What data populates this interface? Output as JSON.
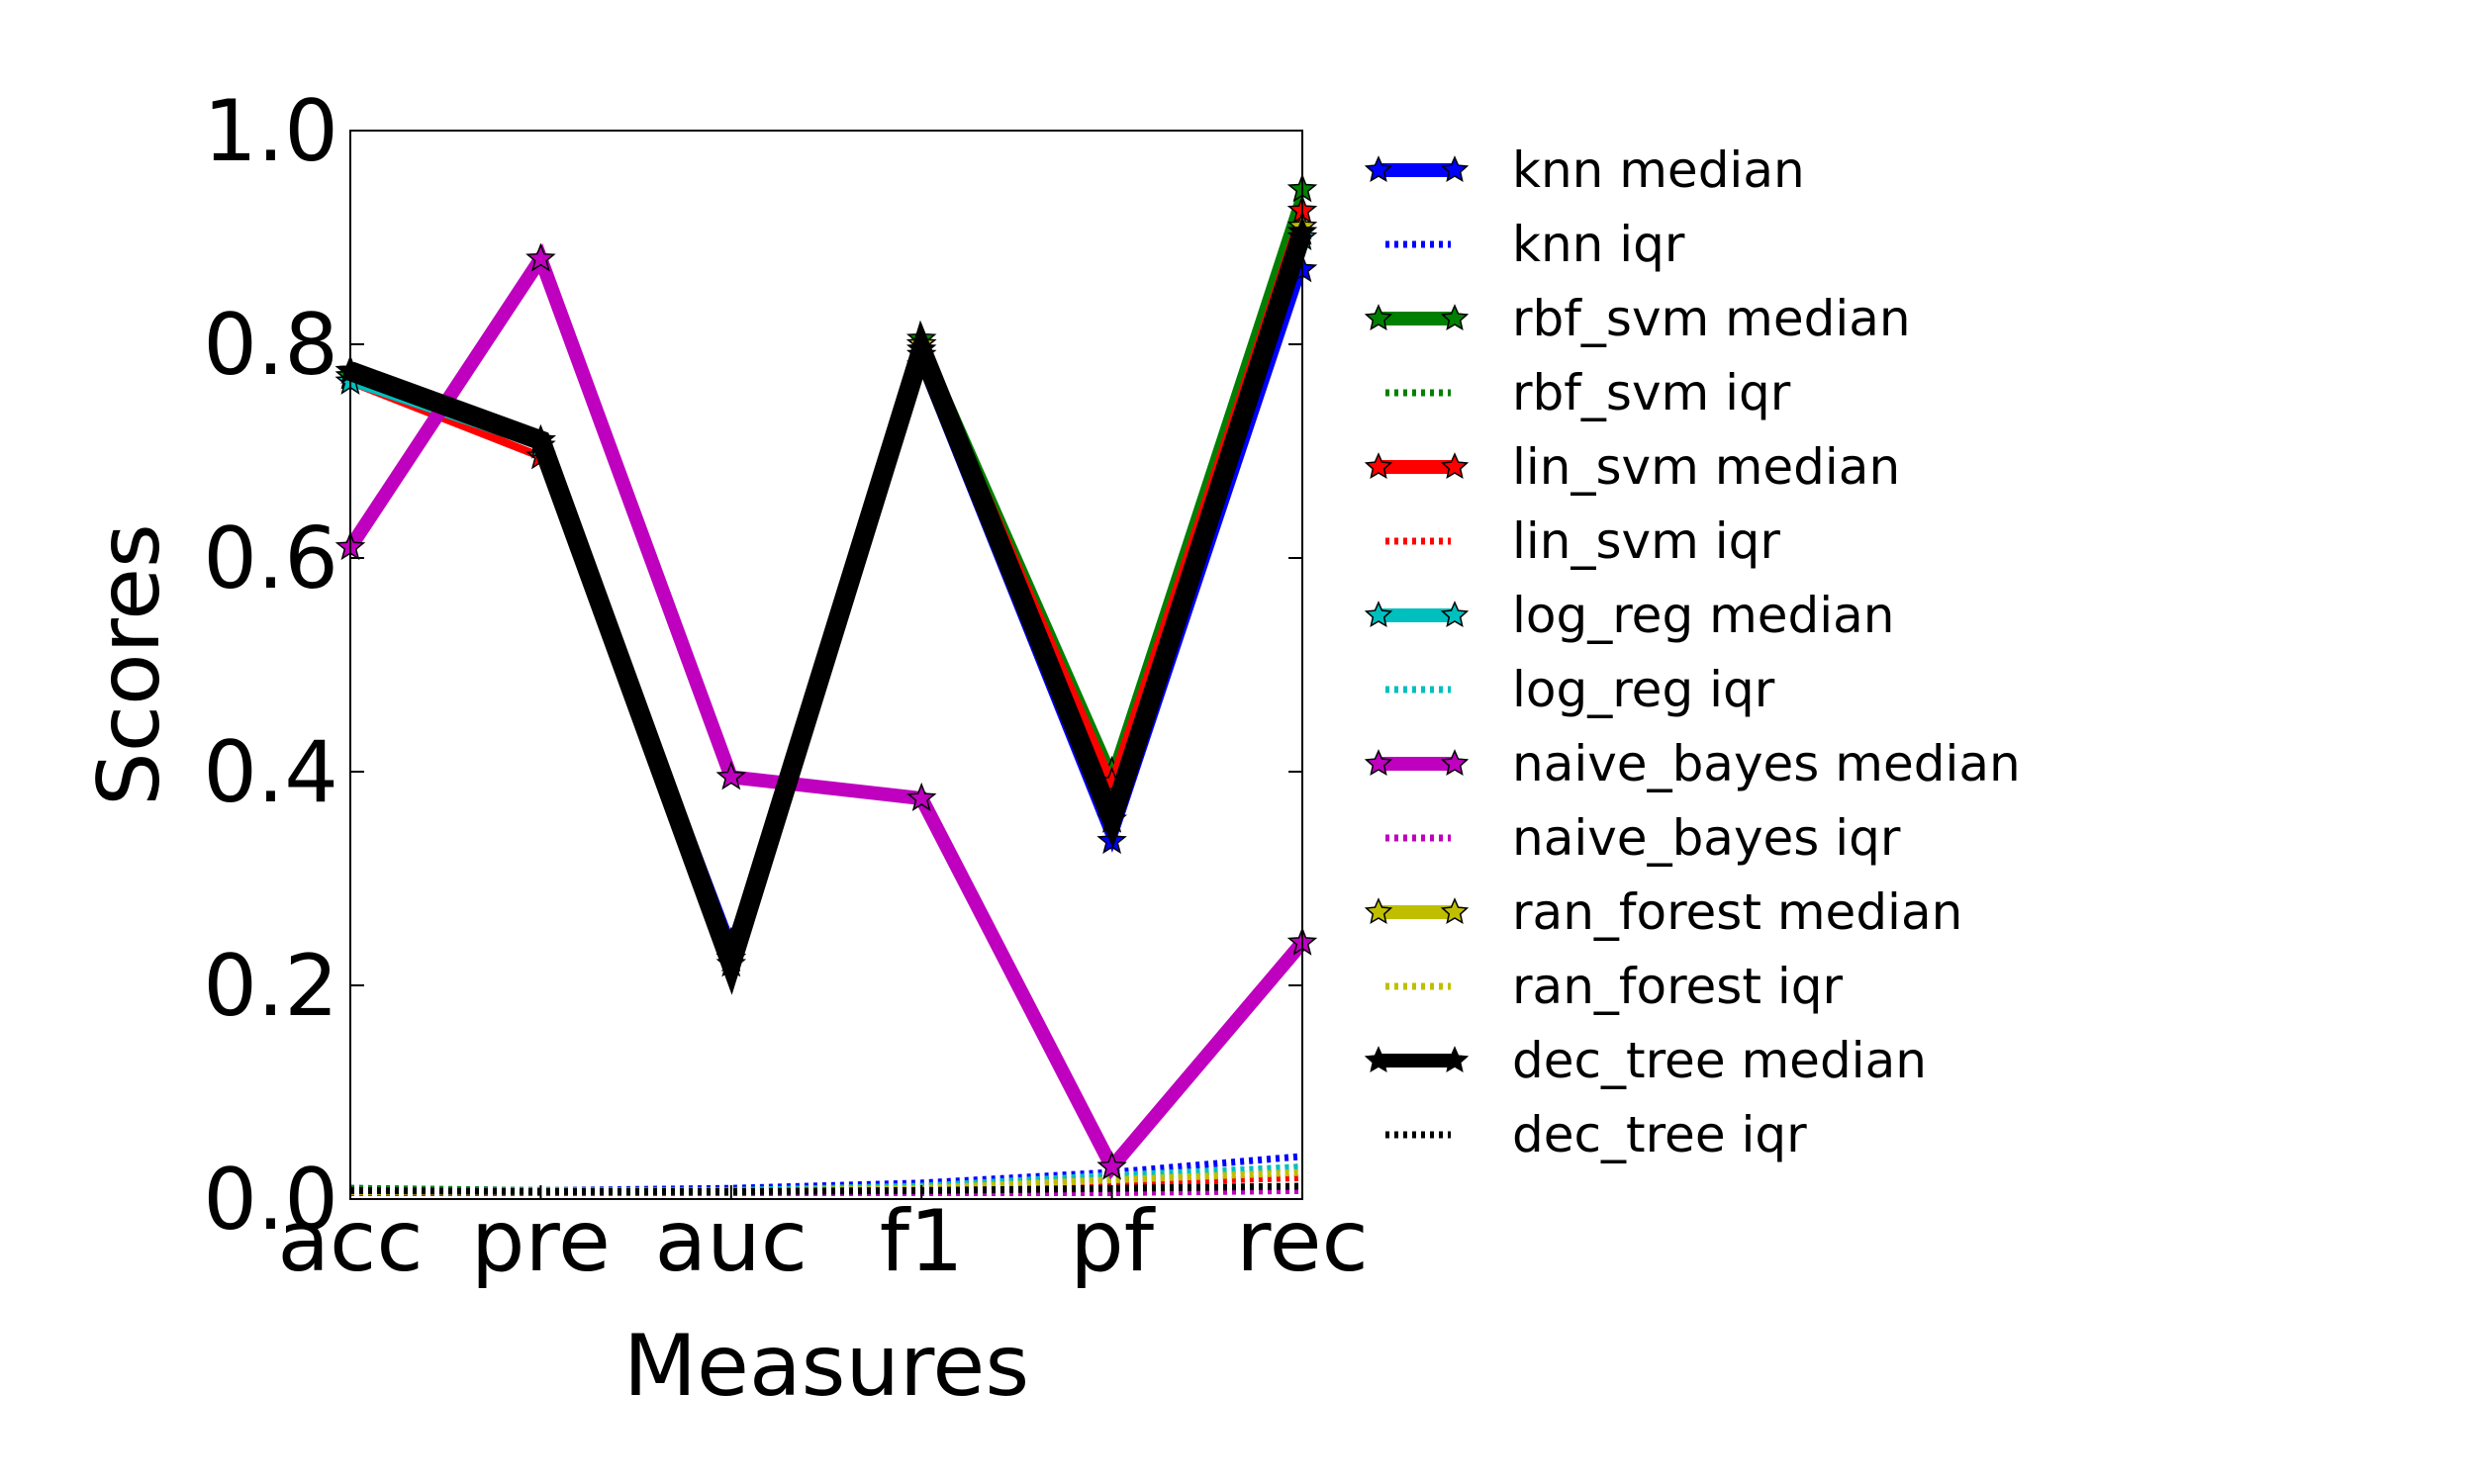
{
  "chart_data": {
    "type": "line",
    "title": "",
    "xlabel": "Measures",
    "ylabel": "Scores",
    "categories": [
      "acc",
      "pre",
      "auc",
      "f1",
      "pf",
      "rec"
    ],
    "ylim": [
      0.0,
      1.0
    ],
    "yticks": [
      "0.0",
      "0.2",
      "0.4",
      "0.6",
      "0.8",
      "1.0"
    ],
    "grid": false,
    "legend_position": "outside-right",
    "series": [
      {
        "name": "knn median",
        "kind": "median",
        "color": "#0000ff",
        "values": [
          0.77,
          0.71,
          0.24,
          0.78,
          0.335,
          0.87
        ]
      },
      {
        "name": "knn iqr",
        "kind": "iqr",
        "color": "#0000ff",
        "values": [
          0.01,
          0.008,
          0.01,
          0.015,
          0.025,
          0.04
        ]
      },
      {
        "name": "rbf_svm median",
        "kind": "median",
        "color": "#008000",
        "values": [
          0.77,
          0.71,
          0.23,
          0.805,
          0.4,
          0.945
        ]
      },
      {
        "name": "rbf_svm iqr",
        "kind": "iqr",
        "color": "#008000",
        "values": [
          0.01,
          0.008,
          0.008,
          0.012,
          0.02,
          0.03
        ]
      },
      {
        "name": "lin_svm median",
        "kind": "median",
        "color": "#ff0000",
        "values": [
          0.765,
          0.695,
          0.225,
          0.8,
          0.39,
          0.925
        ]
      },
      {
        "name": "lin_svm iqr",
        "kind": "iqr",
        "color": "#ff0000",
        "values": [
          0.008,
          0.007,
          0.007,
          0.01,
          0.015,
          0.02
        ]
      },
      {
        "name": "log_reg median",
        "kind": "median",
        "color": "#00bfbf",
        "values": [
          0.765,
          0.705,
          0.235,
          0.79,
          0.355,
          0.9
        ]
      },
      {
        "name": "log_reg iqr",
        "kind": "iqr",
        "color": "#00bfbf",
        "values": [
          0.008,
          0.008,
          0.008,
          0.012,
          0.022,
          0.03
        ]
      },
      {
        "name": "naive_bayes median",
        "kind": "median",
        "color": "#bf00bf",
        "values": [
          0.61,
          0.88,
          0.395,
          0.375,
          0.03,
          0.24
        ]
      },
      {
        "name": "naive_bayes iqr",
        "kind": "iqr",
        "color": "#bf00bf",
        "values": [
          0.006,
          0.006,
          0.006,
          0.006,
          0.006,
          0.008
        ]
      },
      {
        "name": "ran_forest median",
        "kind": "median",
        "color": "#bfbf00",
        "values": [
          0.775,
          0.71,
          0.225,
          0.8,
          0.365,
          0.91
        ]
      },
      {
        "name": "ran_forest iqr",
        "kind": "iqr",
        "color": "#bfbf00",
        "values": [
          0.007,
          0.007,
          0.007,
          0.01,
          0.018,
          0.025
        ]
      },
      {
        "name": "dec_tree median",
        "kind": "median",
        "color": "#000000",
        "values": [
          0.775,
          0.71,
          0.22,
          0.795,
          0.355,
          0.905
        ]
      },
      {
        "name": "dec_tree iqr",
        "kind": "iqr",
        "color": "#000000",
        "values": [
          0.008,
          0.007,
          0.007,
          0.008,
          0.01,
          0.012
        ]
      }
    ]
  }
}
